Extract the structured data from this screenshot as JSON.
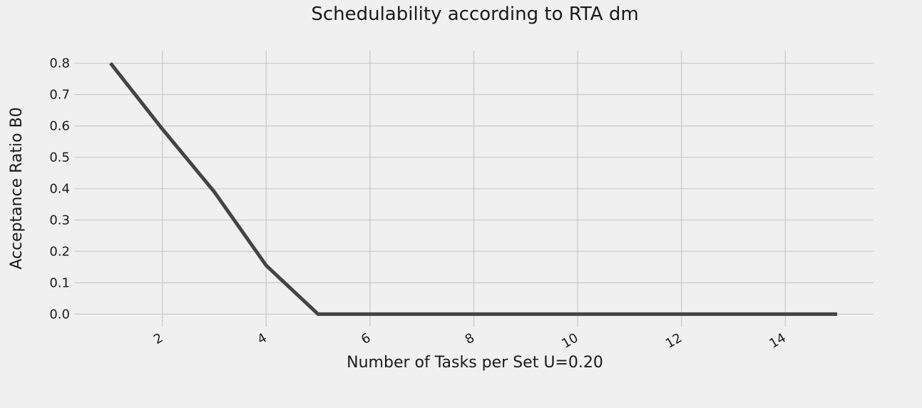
{
  "chart_data": {
    "type": "line",
    "title": "Schedulability according to RTA dm",
    "xlabel": "Number of Tasks per Set U=0.20",
    "ylabel": "Acceptance Ratio B0",
    "xlim": [
      0.3,
      15.7
    ],
    "ylim": [
      -0.04,
      0.84
    ],
    "xticks": [
      2,
      4,
      6,
      8,
      10,
      12,
      14
    ],
    "yticks": [
      0.0,
      0.1,
      0.2,
      0.3,
      0.4,
      0.5,
      0.6,
      0.7,
      0.8
    ],
    "grid": true,
    "series": [
      {
        "x": [
          1,
          2,
          3,
          4,
          5,
          6,
          7,
          8,
          9,
          10,
          11,
          12,
          13,
          14,
          15
        ],
        "y": [
          0.8,
          0.59,
          0.39,
          0.155,
          0.0,
          0.0,
          0.0,
          0.0,
          0.0,
          0.0,
          0.0,
          0.0,
          0.0,
          0.0,
          0.0
        ],
        "color": "#444444"
      }
    ]
  }
}
